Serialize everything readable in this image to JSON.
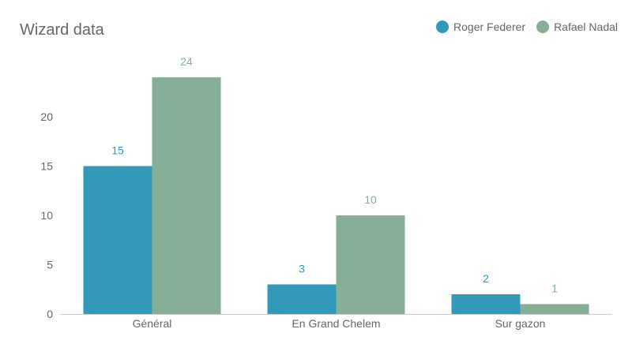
{
  "chart_data": {
    "type": "bar",
    "title": "Wizard data",
    "categories": [
      "Général",
      "En Grand Chelem",
      "Sur gazon"
    ],
    "series": [
      {
        "name": "Roger Federer",
        "values": [
          15,
          3,
          2
        ],
        "color": "#3399bb"
      },
      {
        "name": "Rafael Nadal",
        "values": [
          24,
          10,
          1
        ],
        "color": "#86af98"
      }
    ],
    "ylim": [
      0,
      24
    ],
    "yticks": [
      0,
      5,
      10,
      15,
      20
    ],
    "xlabel": "",
    "ylabel": "",
    "grid": false,
    "legend_position": "top-right",
    "data_labels": true
  }
}
